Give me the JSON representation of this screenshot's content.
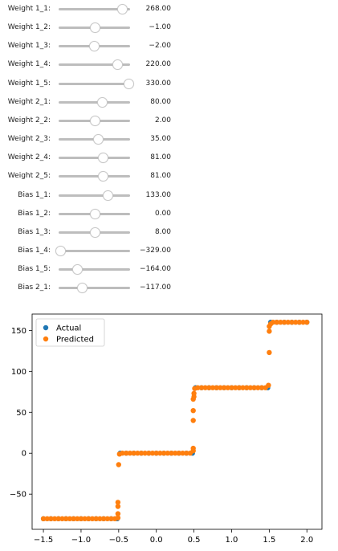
{
  "sliders": [
    {
      "label": "Weight 1_1:",
      "value_text": "268.00",
      "position": 0.89
    },
    {
      "label": "Weight 1_2:",
      "value_text": "−1.00",
      "position": 0.5
    },
    {
      "label": "Weight 1_3:",
      "value_text": "−2.00",
      "position": 0.49
    },
    {
      "label": "Weight 1_4:",
      "value_text": "220.00",
      "position": 0.82
    },
    {
      "label": "Weight 1_5:",
      "value_text": "330.00",
      "position": 0.98
    },
    {
      "label": "Weight 2_1:",
      "value_text": "80.00",
      "position": 0.61
    },
    {
      "label": "Weight 2_2:",
      "value_text": "2.00",
      "position": 0.51
    },
    {
      "label": "Weight 2_3:",
      "value_text": "35.00",
      "position": 0.55
    },
    {
      "label": "Weight 2_4:",
      "value_text": "81.00",
      "position": 0.62
    },
    {
      "label": "Weight 2_5:",
      "value_text": "81.00",
      "position": 0.62
    },
    {
      "label": "Bias 1_1:",
      "value_text": "133.00",
      "position": 0.69
    },
    {
      "label": "Bias 1_2:",
      "value_text": "0.00",
      "position": 0.5
    },
    {
      "label": "Bias 1_3:",
      "value_text": "8.00",
      "position": 0.51
    },
    {
      "label": "Bias 1_4:",
      "value_text": "−329.00",
      "position": 0.02
    },
    {
      "label": "Bias 1_5:",
      "value_text": "−164.00",
      "position": 0.26
    },
    {
      "label": "Bias 2_1:",
      "value_text": "−117.00",
      "position": 0.33
    }
  ],
  "chart_data": {
    "type": "scatter",
    "title": "",
    "xlabel": "",
    "ylabel": "",
    "xlim": [
      -1.65,
      2.2
    ],
    "ylim": [
      -93,
      170
    ],
    "xticks": [
      -1.5,
      -1.0,
      -0.5,
      0.0,
      0.5,
      1.0,
      1.5,
      2.0
    ],
    "xtick_labels": [
      "−1.5",
      "−1.0",
      "−0.5",
      "0.0",
      "0.5",
      "1.0",
      "1.5",
      "2.0"
    ],
    "yticks": [
      -50,
      0,
      50,
      100,
      150
    ],
    "ytick_labels": [
      "−50",
      "0",
      "50",
      "100",
      "150"
    ],
    "grid": false,
    "legend_position": "top-left",
    "series": [
      {
        "name": "Actual",
        "color": "#1f77b4",
        "points": [
          [
            -1.5,
            -80
          ],
          [
            -1.4,
            -80
          ],
          [
            -1.3,
            -80
          ],
          [
            -1.2,
            -80
          ],
          [
            -1.1,
            -80
          ],
          [
            -1.0,
            -80
          ],
          [
            -0.9,
            -80
          ],
          [
            -0.8,
            -80
          ],
          [
            -0.7,
            -80
          ],
          [
            -0.6,
            -80
          ],
          [
            -0.52,
            -80
          ],
          [
            -0.48,
            0
          ],
          [
            -0.4,
            0
          ],
          [
            -0.3,
            0
          ],
          [
            -0.2,
            0
          ],
          [
            -0.1,
            0
          ],
          [
            0.0,
            0
          ],
          [
            0.1,
            0
          ],
          [
            0.2,
            0
          ],
          [
            0.3,
            0
          ],
          [
            0.4,
            0
          ],
          [
            0.48,
            0
          ],
          [
            0.52,
            80
          ],
          [
            0.6,
            80
          ],
          [
            0.7,
            80
          ],
          [
            0.8,
            80
          ],
          [
            0.9,
            80
          ],
          [
            1.0,
            80
          ],
          [
            1.1,
            80
          ],
          [
            1.2,
            80
          ],
          [
            1.3,
            80
          ],
          [
            1.4,
            80
          ],
          [
            1.48,
            80
          ],
          [
            1.52,
            160
          ],
          [
            1.6,
            160
          ],
          [
            1.7,
            160
          ],
          [
            1.8,
            160
          ],
          [
            1.9,
            160
          ],
          [
            2.0,
            160
          ]
        ]
      },
      {
        "name": "Predicted",
        "color": "#ff7f0e",
        "points": [
          [
            -1.5,
            -80
          ],
          [
            -1.45,
            -80
          ],
          [
            -1.4,
            -80
          ],
          [
            -1.35,
            -80
          ],
          [
            -1.3,
            -80
          ],
          [
            -1.25,
            -80
          ],
          [
            -1.2,
            -80
          ],
          [
            -1.15,
            -80
          ],
          [
            -1.1,
            -80
          ],
          [
            -1.05,
            -80
          ],
          [
            -1.0,
            -80
          ],
          [
            -0.95,
            -80
          ],
          [
            -0.9,
            -80
          ],
          [
            -0.85,
            -80
          ],
          [
            -0.8,
            -80
          ],
          [
            -0.75,
            -80
          ],
          [
            -0.7,
            -80
          ],
          [
            -0.65,
            -80
          ],
          [
            -0.6,
            -80
          ],
          [
            -0.55,
            -80
          ],
          [
            -0.51,
            -79
          ],
          [
            -0.51,
            -74
          ],
          [
            -0.51,
            -65
          ],
          [
            -0.51,
            -60
          ],
          [
            -0.5,
            -14
          ],
          [
            -0.49,
            -1
          ],
          [
            -0.45,
            0
          ],
          [
            -0.4,
            0
          ],
          [
            -0.35,
            0
          ],
          [
            -0.3,
            0
          ],
          [
            -0.25,
            0
          ],
          [
            -0.2,
            0
          ],
          [
            -0.15,
            0
          ],
          [
            -0.1,
            0
          ],
          [
            -0.05,
            0
          ],
          [
            0.0,
            0
          ],
          [
            0.05,
            0
          ],
          [
            0.1,
            0
          ],
          [
            0.15,
            0
          ],
          [
            0.2,
            0
          ],
          [
            0.25,
            0
          ],
          [
            0.3,
            0
          ],
          [
            0.35,
            0
          ],
          [
            0.4,
            0
          ],
          [
            0.45,
            0
          ],
          [
            0.49,
            3
          ],
          [
            0.49,
            6
          ],
          [
            0.49,
            40
          ],
          [
            0.49,
            52
          ],
          [
            0.49,
            66
          ],
          [
            0.5,
            69
          ],
          [
            0.5,
            73
          ],
          [
            0.51,
            79
          ],
          [
            0.55,
            80
          ],
          [
            0.6,
            80
          ],
          [
            0.65,
            80
          ],
          [
            0.7,
            80
          ],
          [
            0.75,
            80
          ],
          [
            0.8,
            80
          ],
          [
            0.85,
            80
          ],
          [
            0.9,
            80
          ],
          [
            0.95,
            80
          ],
          [
            1.0,
            80
          ],
          [
            1.05,
            80
          ],
          [
            1.1,
            80
          ],
          [
            1.15,
            80
          ],
          [
            1.2,
            80
          ],
          [
            1.25,
            80
          ],
          [
            1.3,
            80
          ],
          [
            1.35,
            80
          ],
          [
            1.4,
            80
          ],
          [
            1.45,
            80
          ],
          [
            1.49,
            83
          ],
          [
            1.5,
            123
          ],
          [
            1.5,
            149
          ],
          [
            1.5,
            155
          ],
          [
            1.52,
            158
          ],
          [
            1.55,
            160
          ],
          [
            1.6,
            160
          ],
          [
            1.65,
            160
          ],
          [
            1.7,
            160
          ],
          [
            1.75,
            160
          ],
          [
            1.8,
            160
          ],
          [
            1.85,
            160
          ],
          [
            1.9,
            160
          ],
          [
            1.95,
            160
          ],
          [
            2.0,
            160
          ]
        ]
      }
    ]
  }
}
